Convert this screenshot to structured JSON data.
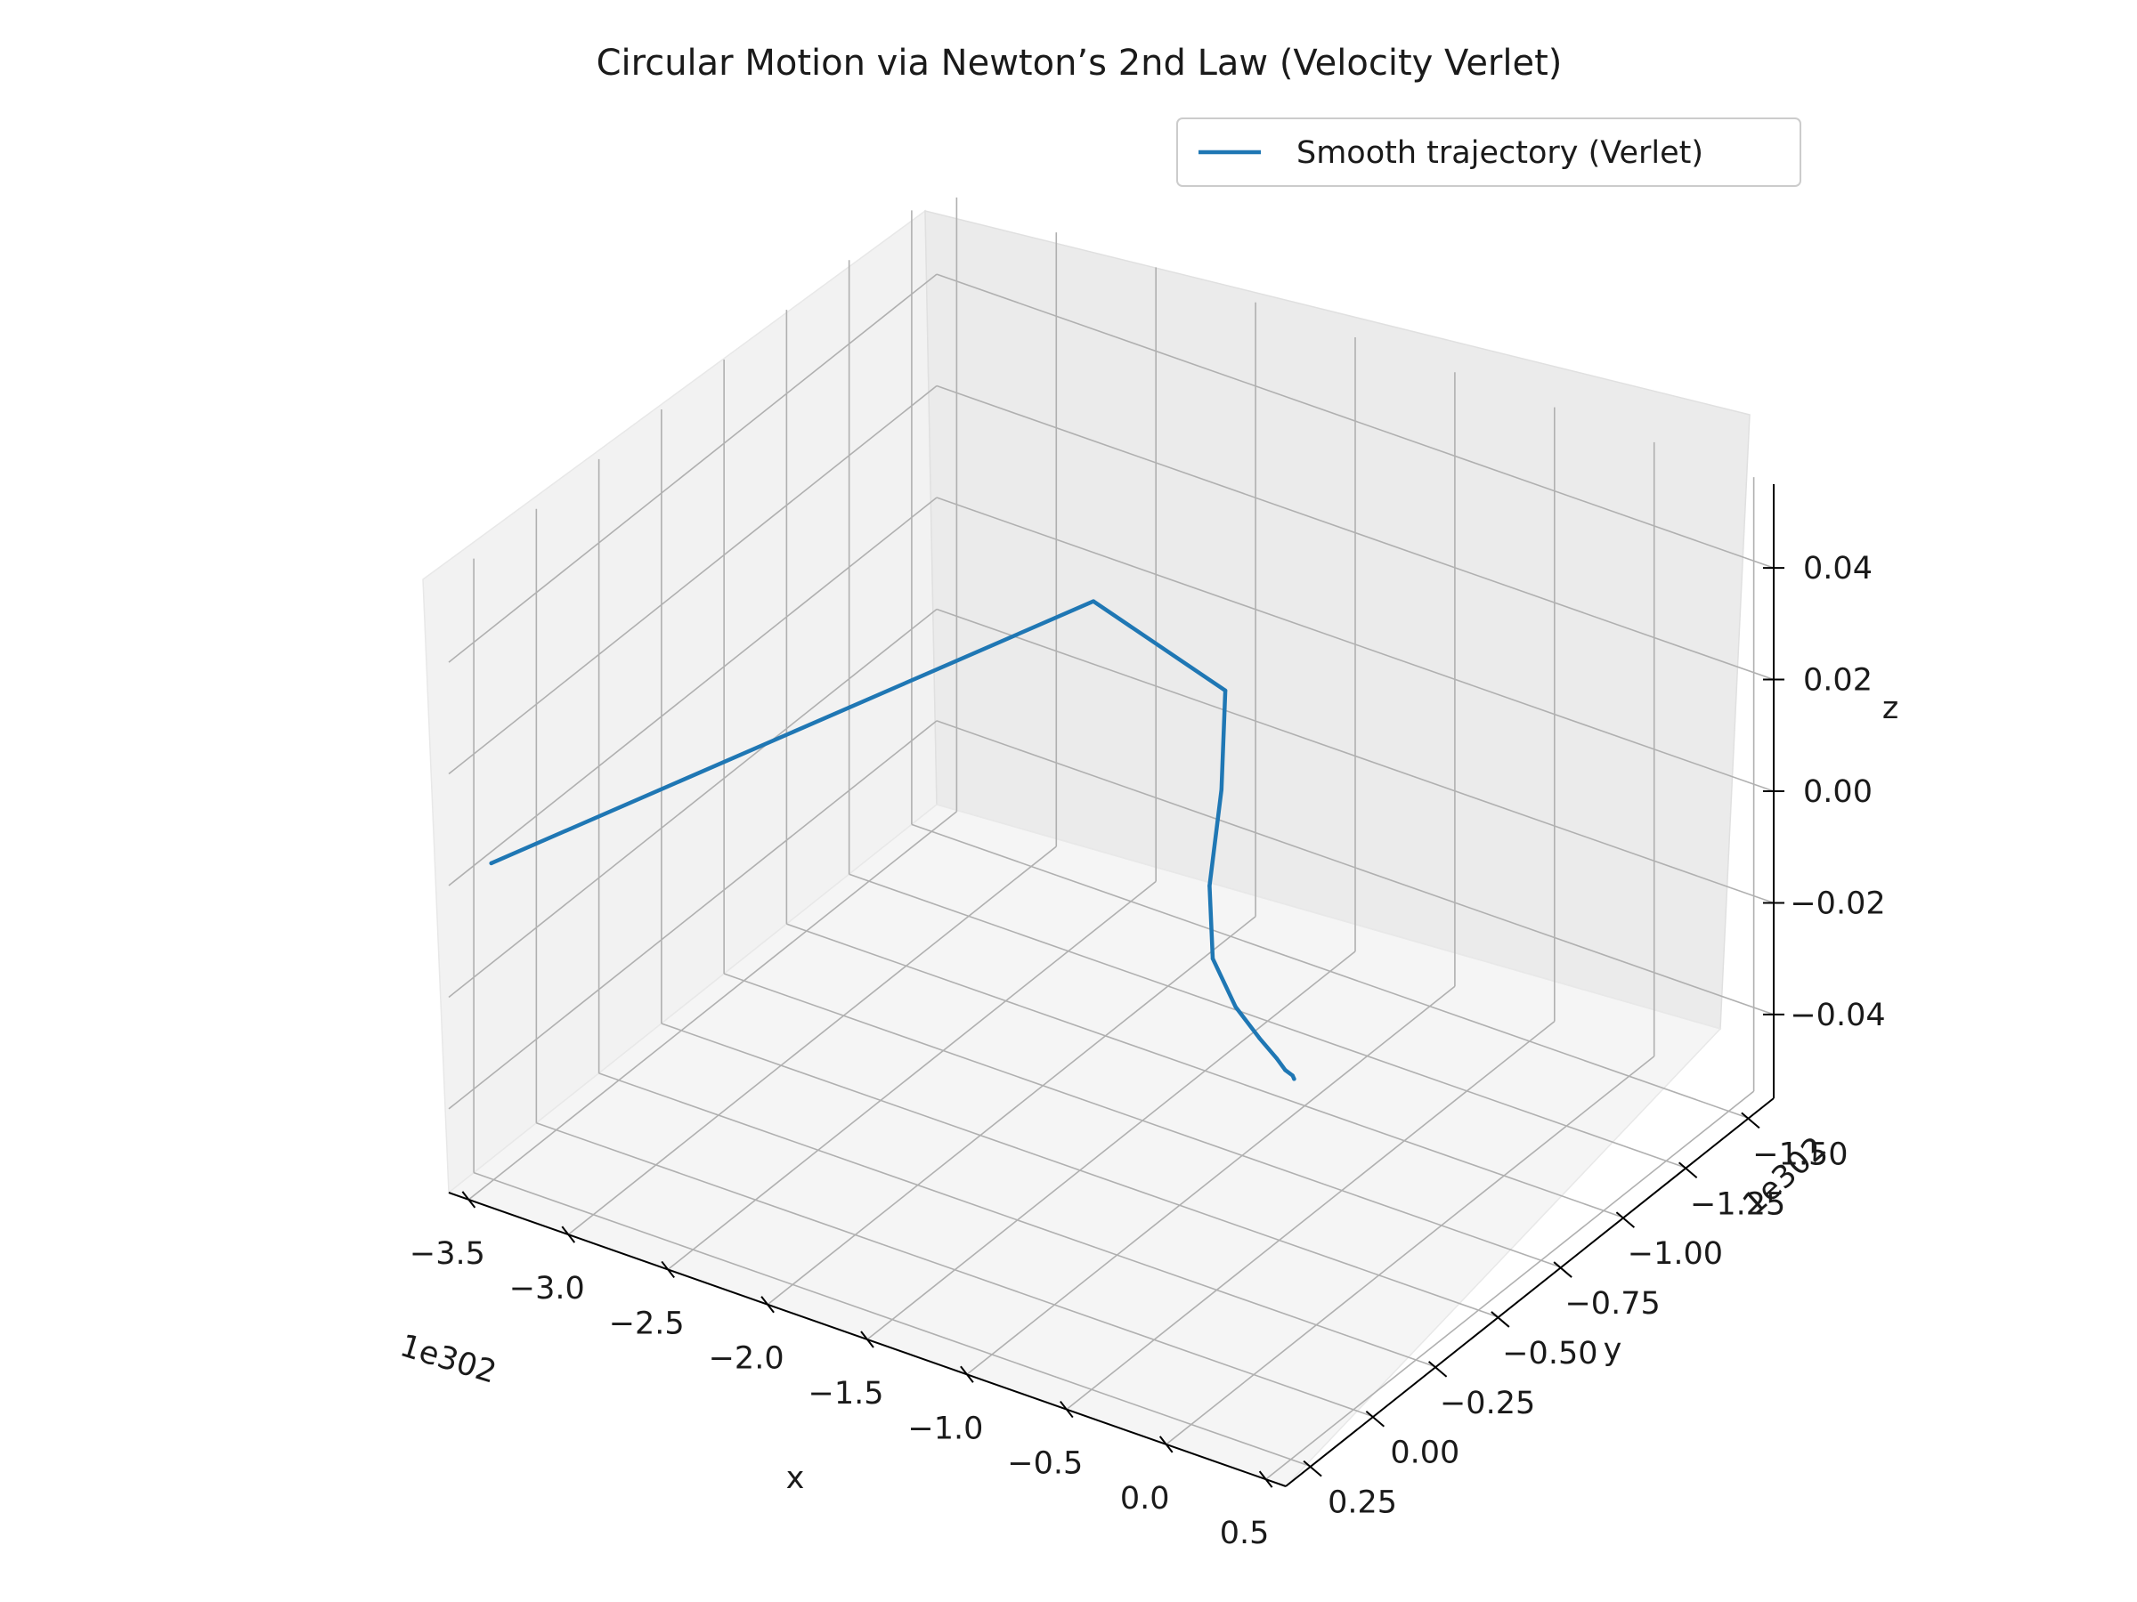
{
  "chart_data": {
    "type": "line",
    "title": "Circular Motion via Newton’s 2nd Law (Velocity Verlet)",
    "xlabel": "x",
    "ylabel": "y",
    "zlabel": "z",
    "x_offset_label": "1e302",
    "y_offset_label": "1e302",
    "xlim": [
      -3.6,
      0.6
    ],
    "ylim": [
      -1.6,
      0.35
    ],
    "zlim": [
      -0.055,
      0.055
    ],
    "x_ticks": [
      "−3.5",
      "−3.0",
      "−2.5",
      "−2.0",
      "−1.5",
      "−1.0",
      "−0.5",
      "0.0",
      "0.5"
    ],
    "y_ticks": [
      "−1.50",
      "−1.25",
      "−1.00",
      "−0.75",
      "−0.50",
      "−0.25",
      "0.00",
      "0.25"
    ],
    "z_ticks": [
      "−0.04",
      "−0.02",
      "0.00",
      "0.02",
      "0.04"
    ],
    "grid": true,
    "legend_position": "top-right",
    "series": [
      {
        "name": "Smooth trajectory (Verlet)",
        "color": "#1f77b4",
        "x": [
          0.19,
          0.17,
          0.12,
          0.04,
          -0.11,
          -0.33,
          -0.62,
          -0.95,
          -1.33,
          -1.75,
          -2.6,
          -3.55
        ],
        "y": [
          -0.01,
          -0.02,
          -0.03,
          -0.06,
          -0.11,
          -0.19,
          -0.33,
          -0.58,
          -0.93,
          -1.28,
          -1.43,
          0.22
        ],
        "z": [
          0,
          0,
          0,
          0,
          0,
          0,
          0,
          0,
          0,
          0,
          0,
          0
        ]
      }
    ]
  }
}
